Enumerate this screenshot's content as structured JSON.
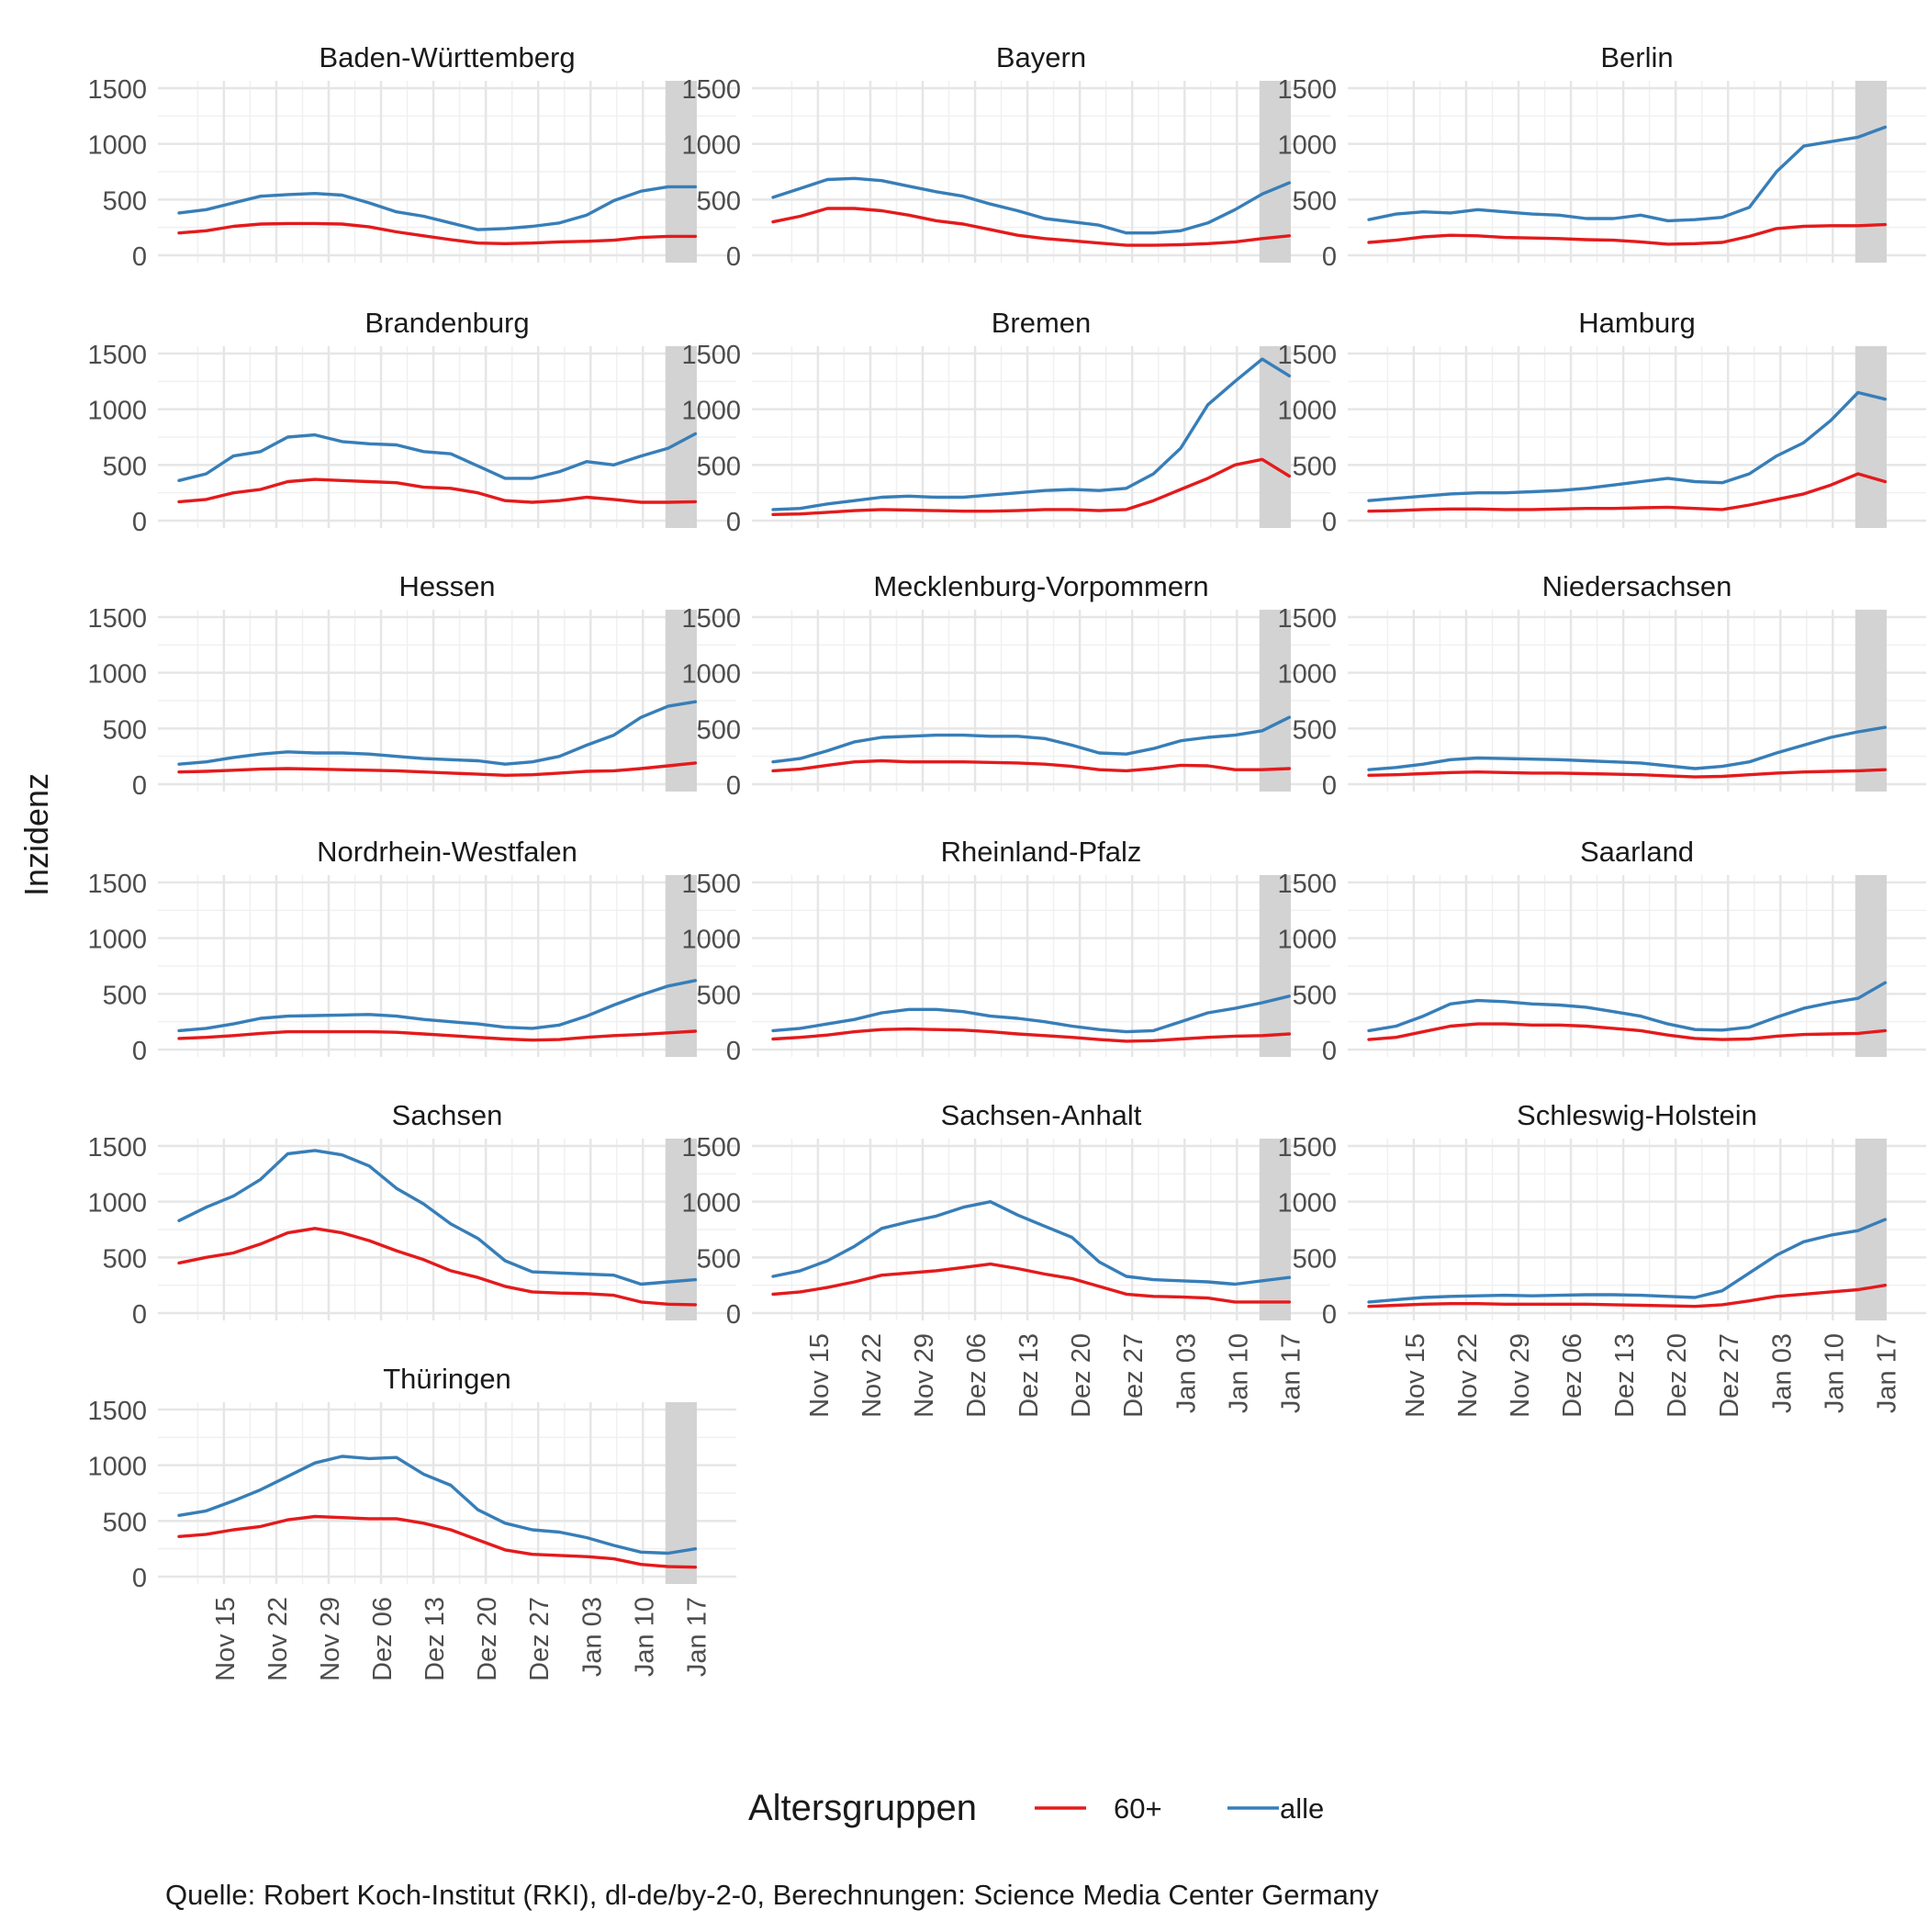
{
  "chart_data": {
    "type": "line",
    "ylabel": "Inzidenz",
    "xlabel": "",
    "ylim": [
      0,
      1500
    ],
    "y_ticks": [
      "0",
      "500",
      "1000",
      "1500"
    ],
    "x_ticks": [
      "Nov 15",
      "Nov 22",
      "Nov 29",
      "Dez 06",
      "Dez 13",
      "Dez 20",
      "Dez 27",
      "Jan 03",
      "Jan 10",
      "Jan 17"
    ],
    "shaded_region_note": "grey band over the last ~5 days (Jan 13 – Jan 18)",
    "legend": {
      "title": "Altersgruppen",
      "placement": "bottom",
      "entries": [
        "60+",
        "alle"
      ]
    },
    "caption": "Quelle: Robert Koch-Institut (RKI), dl-de/by-2-0, Berechnungen: Science Media Center Germany",
    "series_colors": {
      "60+": "#e41a1c",
      "alle": "#377eb8"
    },
    "panels": [
      {
        "name": "Baden-Württemberg",
        "alle": [
          380,
          410,
          470,
          530,
          545,
          555,
          540,
          470,
          390,
          350,
          290,
          230,
          240,
          260,
          290,
          360,
          490,
          575,
          615,
          615
        ],
        "s60": [
          200,
          220,
          260,
          280,
          285,
          285,
          280,
          255,
          210,
          175,
          140,
          110,
          105,
          110,
          120,
          125,
          135,
          160,
          170,
          170
        ]
      },
      {
        "name": "Bayern",
        "alle": [
          520,
          600,
          680,
          690,
          670,
          620,
          570,
          530,
          460,
          400,
          330,
          300,
          270,
          200,
          200,
          220,
          290,
          410,
          550,
          650
        ],
        "s60": [
          300,
          350,
          420,
          420,
          400,
          360,
          310,
          280,
          230,
          180,
          150,
          130,
          110,
          90,
          90,
          95,
          105,
          120,
          150,
          175
        ]
      },
      {
        "name": "Berlin",
        "alle": [
          320,
          370,
          390,
          380,
          410,
          390,
          370,
          360,
          330,
          330,
          360,
          310,
          320,
          340,
          430,
          750,
          980,
          1020,
          1060,
          1150
        ],
        "s60": [
          115,
          135,
          165,
          180,
          175,
          160,
          155,
          150,
          140,
          135,
          120,
          100,
          105,
          115,
          170,
          240,
          260,
          265,
          265,
          275
        ]
      },
      {
        "name": "Brandenburg",
        "alle": [
          360,
          420,
          580,
          620,
          750,
          770,
          710,
          690,
          680,
          620,
          600,
          490,
          380,
          380,
          440,
          530,
          500,
          580,
          650,
          780
        ],
        "s60": [
          170,
          190,
          250,
          280,
          350,
          370,
          360,
          350,
          340,
          300,
          290,
          250,
          180,
          165,
          180,
          210,
          190,
          165,
          165,
          170
        ]
      },
      {
        "name": "Bremen",
        "alle": [
          100,
          110,
          150,
          180,
          210,
          220,
          210,
          210,
          230,
          250,
          270,
          280,
          270,
          290,
          420,
          650,
          1040,
          1250,
          1450,
          1300
        ],
        "s60": [
          55,
          60,
          75,
          90,
          100,
          95,
          90,
          85,
          85,
          90,
          100,
          100,
          90,
          100,
          180,
          280,
          380,
          500,
          550,
          400
        ]
      },
      {
        "name": "Hamburg",
        "alle": [
          180,
          200,
          220,
          240,
          250,
          250,
          260,
          270,
          290,
          320,
          350,
          380,
          350,
          340,
          420,
          580,
          700,
          900,
          1150,
          1090
        ],
        "s60": [
          85,
          90,
          100,
          105,
          105,
          100,
          100,
          105,
          110,
          110,
          115,
          120,
          110,
          100,
          140,
          190,
          240,
          320,
          420,
          350
        ]
      },
      {
        "name": "Hessen",
        "alle": [
          180,
          200,
          240,
          270,
          290,
          280,
          280,
          270,
          250,
          230,
          220,
          210,
          180,
          200,
          250,
          350,
          440,
          600,
          700,
          740
        ],
        "s60": [
          110,
          115,
          125,
          135,
          140,
          135,
          130,
          125,
          120,
          110,
          100,
          90,
          80,
          85,
          100,
          115,
          120,
          140,
          165,
          190
        ]
      },
      {
        "name": "Mecklenburg-Vorpommern",
        "alle": [
          200,
          230,
          300,
          380,
          420,
          430,
          440,
          440,
          430,
          430,
          410,
          350,
          280,
          270,
          320,
          390,
          420,
          440,
          480,
          600
        ],
        "s60": [
          120,
          135,
          170,
          200,
          210,
          200,
          200,
          200,
          195,
          190,
          180,
          160,
          130,
          120,
          140,
          170,
          165,
          130,
          130,
          140
        ]
      },
      {
        "name": "Niedersachsen",
        "alle": [
          130,
          150,
          180,
          220,
          235,
          230,
          225,
          220,
          210,
          200,
          190,
          165,
          140,
          160,
          200,
          280,
          350,
          420,
          470,
          510
        ],
        "s60": [
          80,
          85,
          95,
          105,
          110,
          105,
          100,
          100,
          95,
          90,
          85,
          75,
          65,
          70,
          85,
          100,
          110,
          115,
          120,
          130
        ]
      },
      {
        "name": "Nordrhein-Westfalen",
        "alle": [
          170,
          190,
          230,
          280,
          300,
          305,
          310,
          315,
          300,
          270,
          250,
          230,
          200,
          190,
          220,
          300,
          400,
          490,
          570,
          620
        ],
        "s60": [
          100,
          110,
          125,
          145,
          160,
          160,
          160,
          160,
          155,
          140,
          125,
          110,
          95,
          85,
          90,
          110,
          125,
          135,
          150,
          165
        ]
      },
      {
        "name": "Rheinland-Pfalz",
        "alle": [
          170,
          190,
          230,
          270,
          330,
          360,
          360,
          340,
          300,
          280,
          250,
          210,
          180,
          160,
          170,
          250,
          330,
          370,
          420,
          480
        ],
        "s60": [
          95,
          110,
          130,
          160,
          180,
          185,
          180,
          175,
          160,
          140,
          125,
          110,
          90,
          75,
          80,
          95,
          110,
          120,
          125,
          140
        ]
      },
      {
        "name": "Saarland",
        "alle": [
          170,
          210,
          300,
          410,
          440,
          430,
          410,
          400,
          380,
          340,
          300,
          230,
          180,
          175,
          200,
          290,
          370,
          420,
          460,
          600
        ],
        "s60": [
          90,
          110,
          160,
          210,
          230,
          230,
          220,
          220,
          210,
          190,
          170,
          130,
          100,
          90,
          95,
          120,
          135,
          140,
          145,
          170
        ]
      },
      {
        "name": "Sachsen",
        "alle": [
          830,
          950,
          1050,
          1200,
          1430,
          1460,
          1420,
          1320,
          1120,
          980,
          800,
          670,
          470,
          370,
          360,
          350,
          340,
          260,
          280,
          300
        ],
        "s60": [
          450,
          500,
          540,
          620,
          720,
          760,
          720,
          650,
          560,
          480,
          380,
          320,
          240,
          190,
          180,
          175,
          160,
          100,
          80,
          75
        ]
      },
      {
        "name": "Sachsen-Anhalt",
        "alle": [
          330,
          380,
          470,
          600,
          760,
          820,
          870,
          950,
          1000,
          880,
          780,
          680,
          460,
          330,
          300,
          290,
          280,
          260,
          290,
          320
        ],
        "s60": [
          170,
          190,
          230,
          280,
          340,
          360,
          380,
          410,
          440,
          400,
          350,
          310,
          240,
          170,
          150,
          145,
          135,
          100,
          100,
          100
        ]
      },
      {
        "name": "Schleswig-Holstein",
        "alle": [
          100,
          120,
          140,
          150,
          155,
          160,
          155,
          160,
          165,
          165,
          160,
          150,
          140,
          200,
          360,
          520,
          640,
          700,
          740,
          840
        ],
        "s60": [
          60,
          70,
          80,
          85,
          85,
          80,
          80,
          80,
          80,
          75,
          70,
          65,
          60,
          75,
          110,
          150,
          170,
          190,
          210,
          250
        ]
      },
      {
        "name": "Thüringen",
        "alle": [
          550,
          590,
          680,
          780,
          900,
          1020,
          1080,
          1060,
          1070,
          920,
          820,
          600,
          480,
          420,
          400,
          350,
          280,
          220,
          210,
          250
        ],
        "s60": [
          360,
          380,
          420,
          450,
          510,
          540,
          530,
          520,
          520,
          480,
          420,
          330,
          240,
          200,
          190,
          180,
          160,
          110,
          90,
          85
        ]
      }
    ]
  }
}
